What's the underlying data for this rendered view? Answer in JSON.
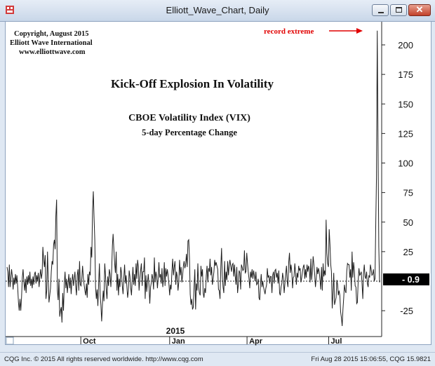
{
  "window": {
    "title": "Elliott_Wave_Chart, Daily",
    "min_glyph": "–",
    "max_glyph": "□",
    "close_glyph": "✕"
  },
  "copyright": {
    "line1": "Copyright, August 2015",
    "line2": "Elliott Wave International",
    "line3": "www.elliottwave.com"
  },
  "annotations": {
    "record": "record extreme",
    "last_value": "- 0.9",
    "year_label": "2015"
  },
  "status": {
    "left": "CQG Inc. © 2015 All rights reserved worldwide. http://www.cqg.com",
    "right": "Fri Aug 28 2015 15:06:55, CQG 15.9821"
  },
  "colors": {
    "line": "#1f1f1f",
    "annotation": "#e10000",
    "last_value_bg": "#000000",
    "last_value_fg": "#ffffff"
  },
  "chart_data": {
    "type": "line",
    "title": "Kick-Off Explosion In Volatility",
    "subtitle": "CBOE Volatility Index (VIX)",
    "subtitle2": "5-day Percentage Change",
    "ylim": [
      -40,
      220
    ],
    "ytick_values": [
      -25,
      25,
      50,
      75,
      100,
      125,
      150,
      175,
      200
    ],
    "ytick_labels": [
      "-25",
      "25",
      "50",
      "75",
      "100",
      "125",
      "150",
      "175",
      "200"
    ],
    "zero_line": 0,
    "x_range": [
      0,
      520
    ],
    "xtick_labels": [
      "Oct",
      "Jan",
      "Apr",
      "Jul"
    ],
    "xtick_positions": [
      103,
      227,
      335,
      449
    ],
    "values": [
      12,
      8,
      -5,
      14,
      -5,
      2,
      10,
      4,
      -7,
      3,
      -3,
      6,
      -2,
      5,
      -5,
      -18,
      -25,
      -15,
      -25,
      -14,
      3,
      10,
      0,
      -8,
      2,
      -10,
      4,
      -3,
      5,
      -2,
      8,
      -4,
      2,
      -6,
      4,
      -3,
      6,
      8,
      -2,
      5,
      0,
      7,
      -5,
      4,
      10,
      2,
      7,
      29,
      18,
      12,
      22,
      -15,
      -8,
      25,
      0,
      -18,
      -12,
      -6,
      8,
      17,
      14,
      31,
      35,
      27,
      55,
      69,
      -8,
      -16,
      2,
      -30,
      -25,
      -22,
      -35,
      -10,
      -25,
      -3,
      8,
      -6,
      2,
      -10,
      -2,
      6,
      -6,
      3,
      -11,
      0,
      6,
      -4,
      2,
      8,
      -4,
      -12,
      5,
      10,
      -8,
      17,
      -3,
      -4,
      2,
      13,
      3,
      -3,
      -8,
      -12,
      -2,
      -14,
      6,
      -3,
      8,
      5,
      29,
      20,
      60,
      76,
      55,
      35,
      -5,
      -15,
      -7,
      -21,
      -2,
      15,
      -12,
      -20,
      -34,
      -20,
      -8,
      -17,
      15,
      5,
      -8,
      -15,
      4,
      -4,
      10,
      6,
      -5,
      8,
      30,
      40,
      27,
      15,
      7,
      25,
      -8,
      6,
      -12,
      2,
      -5,
      12,
      7,
      -4,
      -11,
      3,
      14,
      -2,
      5,
      -4,
      -14,
      -8,
      9,
      4,
      -6,
      -12,
      2,
      12,
      -3,
      6,
      -4,
      15,
      2,
      18,
      12,
      -8,
      2,
      9,
      15,
      -4,
      8,
      8,
      20,
      -15,
      5,
      -9,
      -1,
      6,
      -4,
      -19,
      -5,
      -1,
      6,
      2,
      -7,
      20,
      -1,
      8,
      4,
      -6,
      2,
      16,
      3,
      6,
      -2,
      11,
      -5,
      2,
      16,
      -4,
      11,
      4,
      10,
      5,
      -2,
      -12,
      -3,
      -7,
      8,
      19,
      5,
      12,
      17,
      -3,
      8,
      4,
      -8,
      -1,
      18,
      5,
      12,
      -1,
      5,
      13,
      17,
      11,
      14,
      23,
      12,
      34,
      35,
      19,
      -11,
      -20,
      -15,
      -24,
      -22,
      -5,
      10,
      -24,
      -2,
      -8,
      15,
      -5,
      -10,
      -12,
      13,
      4,
      10,
      -10,
      -14,
      -6,
      -10,
      5,
      13,
      -1,
      11,
      8,
      19,
      5,
      12,
      -3,
      2,
      8,
      18,
      13,
      16,
      13,
      10,
      -7,
      -8,
      -15,
      12,
      28,
      5,
      -5,
      -10,
      17,
      -4,
      8,
      1,
      17,
      5,
      12,
      18,
      13,
      8,
      14,
      15,
      4,
      14,
      4,
      -3,
      12,
      -10,
      -3,
      9,
      7,
      -7,
      14,
      12,
      9,
      10,
      26,
      7,
      8,
      24,
      15,
      8,
      2,
      -6,
      8,
      3,
      10,
      2,
      9,
      5,
      0,
      8,
      -3,
      -2,
      2,
      -14,
      -16,
      -2,
      6,
      -5,
      0,
      -5,
      -8,
      -11,
      -6,
      -3,
      11,
      3,
      5,
      -2,
      4,
      4,
      -10,
      5,
      8,
      -2,
      9,
      10,
      3,
      7,
      -2,
      9,
      -10,
      -12,
      -5,
      -2,
      7,
      2,
      -10,
      -2,
      6,
      13,
      0,
      -5,
      16,
      24,
      7,
      14,
      8,
      -6,
      3,
      4,
      15,
      7,
      -3,
      7,
      3,
      13,
      9,
      11,
      -1,
      3,
      8,
      12,
      14,
      2,
      10,
      3,
      14,
      8,
      13,
      10,
      -1,
      19,
      1,
      9,
      21,
      14,
      6,
      -5,
      2,
      12,
      6,
      11,
      8,
      1,
      -7,
      12,
      -8,
      15,
      4,
      9,
      5,
      52,
      24,
      15,
      12,
      44,
      31,
      14,
      8,
      -23,
      -10,
      7,
      -20,
      -17,
      -14,
      1,
      -3,
      -12,
      -8,
      -12,
      -26,
      -31,
      -38,
      -24,
      -14,
      -3,
      -8,
      -10,
      8,
      15,
      14,
      14,
      3,
      10,
      -8,
      25,
      3,
      16,
      9,
      -4,
      -5,
      -19,
      -18,
      0,
      11,
      5,
      6,
      8,
      -2,
      -15,
      6,
      14,
      4,
      2,
      8,
      -2,
      -5,
      5,
      3,
      14,
      10,
      5,
      6,
      10,
      0,
      2,
      50,
      88,
      212,
      117,
      29,
      -1
    ]
  }
}
